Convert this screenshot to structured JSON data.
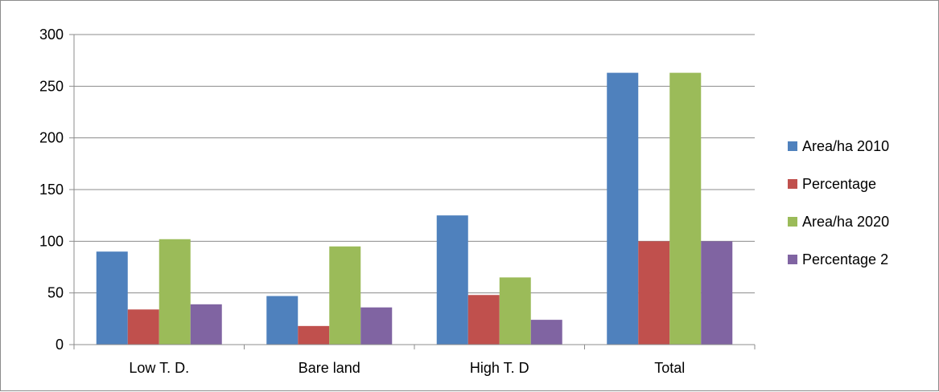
{
  "chart_data": {
    "type": "bar",
    "title": "",
    "xlabel": "",
    "ylabel": "",
    "categories": [
      "Low T. D.",
      "Bare land",
      "High T. D",
      "Total"
    ],
    "series": [
      {
        "name": "Area/ha 2010",
        "color": "#4F81BD",
        "values": [
          90,
          47,
          125,
          263
        ]
      },
      {
        "name": "Percentage",
        "color": "#C0504D",
        "values": [
          34,
          18,
          48,
          100
        ]
      },
      {
        "name": "Area/ha 2020",
        "color": "#9BBB59",
        "values": [
          102,
          95,
          65,
          263
        ]
      },
      {
        "name": "Percentage 2",
        "color": "#8064A2",
        "values": [
          39,
          36,
          24,
          100
        ]
      }
    ],
    "ylim": [
      0,
      300
    ],
    "yticks": [
      0,
      50,
      100,
      150,
      200,
      250,
      300
    ],
    "grid": true,
    "legend_position": "right"
  }
}
